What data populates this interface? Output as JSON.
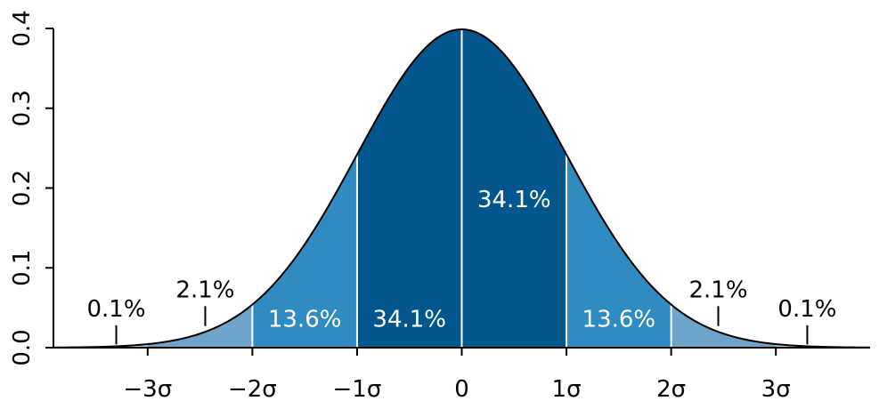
{
  "chart_data": {
    "type": "area",
    "distribution": "standard normal",
    "xlim": [
      -3.9,
      3.9
    ],
    "ylim": [
      0,
      0.4
    ],
    "x_ticks": [
      {
        "value": -3,
        "label": "−3σ"
      },
      {
        "value": -2,
        "label": "−2σ"
      },
      {
        "value": -1,
        "label": "−1σ"
      },
      {
        "value": 0,
        "label": "0"
      },
      {
        "value": 1,
        "label": "1σ"
      },
      {
        "value": 2,
        "label": "2σ"
      },
      {
        "value": 3,
        "label": "3σ"
      }
    ],
    "y_ticks": [
      {
        "value": 0.0,
        "label": "0.0"
      },
      {
        "value": 0.1,
        "label": "0.1"
      },
      {
        "value": 0.2,
        "label": "0.2"
      },
      {
        "value": 0.3,
        "label": "0.3"
      },
      {
        "value": 0.4,
        "label": "0.4"
      }
    ],
    "bands": [
      {
        "from": -3,
        "to": -2,
        "color": "#6ea4cc"
      },
      {
        "from": -2,
        "to": -1,
        "color": "#2f8bc0"
      },
      {
        "from": -1,
        "to": 0,
        "color": "#04578c",
        "label": "34.1%",
        "label_color": "#ffffff"
      },
      {
        "from": 0,
        "to": 1,
        "color": "#04578c",
        "label": "34.1%",
        "label_color": "#ffffff"
      },
      {
        "from": 1,
        "to": 2,
        "color": "#2f8bc0",
        "label": "13.6%",
        "label_color": "#ffffff"
      },
      {
        "from": 2,
        "to": 3,
        "color": "#6ea4cc"
      }
    ],
    "inner_left_label": {
      "from": -2,
      "to": -1,
      "label": "13.6%",
      "label_color": "#ffffff"
    },
    "outer_band_color": "#aecde3",
    "tail_labels": [
      {
        "x": -3.3,
        "label": "0.1%"
      },
      {
        "x": -2.45,
        "label": "2.1%"
      },
      {
        "x": 2.45,
        "label": "2.1%"
      },
      {
        "x": 3.3,
        "label": "0.1%"
      }
    ],
    "sigma_lines": [
      -2,
      -1,
      0,
      1,
      2
    ],
    "curve_color": "#000000",
    "grid": false
  }
}
